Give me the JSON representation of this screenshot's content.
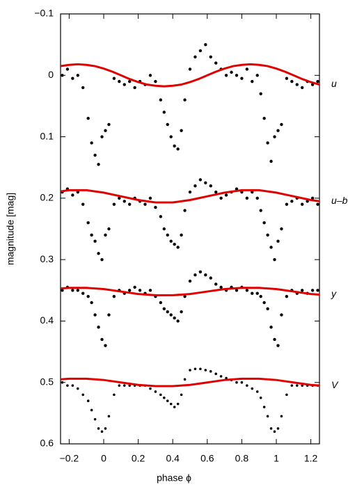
{
  "chart_data": {
    "type": "scatter",
    "xlabel": "phase ϕ",
    "ylabel": "magnitude [mag]",
    "xlim": [
      -0.25,
      1.25
    ],
    "ylim": [
      -0.1,
      0.6
    ],
    "y_inverted": true,
    "xticks": [
      {
        "value": -0.2,
        "label": "−0.2"
      },
      0,
      0.2,
      0.4,
      0.6,
      0.8,
      1,
      1.2
    ],
    "yticks": [
      {
        "value": -0.1,
        "label": "−0.1"
      },
      0,
      0.1,
      0.2,
      0.3,
      0.4,
      0.5,
      0.6
    ],
    "point_color": "#000000",
    "model_color": "#e00000",
    "x": [
      -0.24,
      -0.21,
      -0.18,
      -0.15,
      -0.12,
      -0.09,
      -0.07,
      -0.05,
      -0.03,
      -0.01,
      0.01,
      0.03,
      0.06,
      0.09,
      0.12,
      0.15,
      0.18,
      0.21,
      0.24,
      0.27,
      0.3,
      0.33,
      0.35,
      0.37,
      0.39,
      0.41,
      0.43,
      0.45,
      0.47,
      0.5,
      0.53,
      0.56,
      0.59,
      0.62,
      0.65,
      0.68,
      0.71,
      0.74,
      0.77,
      0.8,
      0.83,
      0.86,
      0.89,
      0.91,
      0.93,
      0.95,
      0.97,
      0.99,
      1.01,
      1.03,
      1.06,
      1.09,
      1.12,
      1.15,
      1.18,
      1.21,
      1.24
    ],
    "model_x": [
      -0.25,
      -0.2,
      -0.15,
      -0.1,
      -0.05,
      0,
      0.05,
      0.1,
      0.15,
      0.2,
      0.25,
      0.3,
      0.35,
      0.4,
      0.45,
      0.5,
      0.55,
      0.6,
      0.65,
      0.7,
      0.75,
      0.8,
      0.85,
      0.9,
      0.95,
      1,
      1.05,
      1.1,
      1.15,
      1.2,
      1.25
    ],
    "series": [
      {
        "name": "u",
        "values": [
          0,
          -0.01,
          0.005,
          0,
          0.02,
          0.07,
          0.11,
          0.13,
          0.145,
          0.1,
          0.09,
          0.08,
          0.005,
          0.01,
          0.015,
          0.01,
          0.02,
          0.01,
          0.015,
          0,
          0.01,
          0.04,
          0.06,
          0.08,
          0.1,
          0.115,
          0.12,
          0.09,
          0.04,
          -0.01,
          -0.03,
          -0.04,
          -0.05,
          -0.03,
          -0.02,
          -0.01,
          0,
          -0.005,
          0,
          0.005,
          -0.01,
          0.01,
          0,
          0.03,
          0.07,
          0.11,
          0.14,
          0.1,
          0.09,
          0.08,
          0.005,
          0.01,
          0.015,
          0.02,
          0.01,
          0.015,
          0.01
        ],
        "model": [
          -0.015,
          -0.017,
          -0.018,
          -0.017,
          -0.015,
          -0.011,
          -0.006,
          0,
          0.006,
          0.011,
          0.015,
          0.017,
          0.018,
          0.017,
          0.015,
          0.011,
          0.006,
          0,
          -0.006,
          -0.011,
          -0.015,
          -0.017,
          -0.018,
          -0.017,
          -0.015,
          -0.011,
          -0.006,
          0,
          0.006,
          0.011,
          0.015
        ]
      },
      {
        "name": "u–b",
        "values": [
          0.19,
          0.185,
          0.195,
          0.19,
          0.21,
          0.24,
          0.26,
          0.27,
          0.29,
          0.3,
          0.26,
          0.25,
          0.21,
          0.2,
          0.205,
          0.21,
          0.2,
          0.205,
          0.21,
          0.2,
          0.215,
          0.23,
          0.25,
          0.26,
          0.27,
          0.275,
          0.28,
          0.26,
          0.22,
          0.19,
          0.18,
          0.17,
          0.175,
          0.18,
          0.19,
          0.2,
          0.195,
          0.19,
          0.185,
          0.19,
          0.2,
          0.19,
          0.2,
          0.22,
          0.24,
          0.26,
          0.28,
          0.3,
          0.27,
          0.25,
          0.21,
          0.205,
          0.2,
          0.21,
          0.205,
          0.2,
          0.21
        ],
        "model": [
          0.189,
          0.187,
          0.187,
          0.187,
          0.189,
          0.191,
          0.194,
          0.197,
          0.2,
          0.203,
          0.205,
          0.207,
          0.207,
          0.207,
          0.205,
          0.203,
          0.2,
          0.197,
          0.194,
          0.191,
          0.189,
          0.187,
          0.187,
          0.187,
          0.189,
          0.191,
          0.194,
          0.197,
          0.2,
          0.203,
          0.205
        ]
      },
      {
        "name": "y",
        "values": [
          0.35,
          0.345,
          0.35,
          0.35,
          0.355,
          0.36,
          0.37,
          0.39,
          0.41,
          0.43,
          0.44,
          0.39,
          0.36,
          0.35,
          0.355,
          0.35,
          0.345,
          0.35,
          0.355,
          0.35,
          0.36,
          0.37,
          0.38,
          0.385,
          0.39,
          0.395,
          0.4,
          0.385,
          0.36,
          0.335,
          0.325,
          0.32,
          0.325,
          0.33,
          0.34,
          0.345,
          0.35,
          0.345,
          0.35,
          0.345,
          0.35,
          0.355,
          0.355,
          0.36,
          0.37,
          0.38,
          0.41,
          0.43,
          0.44,
          0.39,
          0.36,
          0.35,
          0.355,
          0.35,
          0.355,
          0.35,
          0.35
        ],
        "model": [
          0.347,
          0.346,
          0.346,
          0.346,
          0.347,
          0.348,
          0.35,
          0.352,
          0.354,
          0.356,
          0.357,
          0.358,
          0.358,
          0.358,
          0.357,
          0.356,
          0.354,
          0.352,
          0.35,
          0.348,
          0.347,
          0.346,
          0.346,
          0.346,
          0.347,
          0.348,
          0.35,
          0.352,
          0.354,
          0.356,
          0.357
        ]
      },
      {
        "name": "V",
        "values": [
          0.5,
          0.505,
          0.505,
          0.51,
          0.52,
          0.53,
          0.545,
          0.56,
          0.575,
          0.58,
          0.575,
          0.555,
          0.52,
          0.505,
          0.505,
          0.505,
          0.505,
          0.505,
          0.505,
          0.51,
          0.515,
          0.52,
          0.525,
          0.53,
          0.535,
          0.54,
          0.535,
          0.52,
          0.495,
          0.48,
          0.478,
          0.478,
          0.48,
          0.482,
          0.486,
          0.49,
          0.493,
          0.496,
          0.5,
          0.5,
          0.505,
          0.51,
          0.515,
          0.525,
          0.54,
          0.555,
          0.575,
          0.58,
          0.575,
          0.555,
          0.52,
          0.505,
          0.505,
          0.505,
          0.505,
          0.505,
          0.505
        ],
        "model": [
          0.495,
          0.494,
          0.494,
          0.494,
          0.495,
          0.496,
          0.498,
          0.5,
          0.502,
          0.504,
          0.505,
          0.506,
          0.506,
          0.506,
          0.505,
          0.504,
          0.502,
          0.5,
          0.498,
          0.496,
          0.495,
          0.494,
          0.494,
          0.494,
          0.495,
          0.496,
          0.498,
          0.5,
          0.502,
          0.504,
          0.505
        ]
      }
    ]
  }
}
